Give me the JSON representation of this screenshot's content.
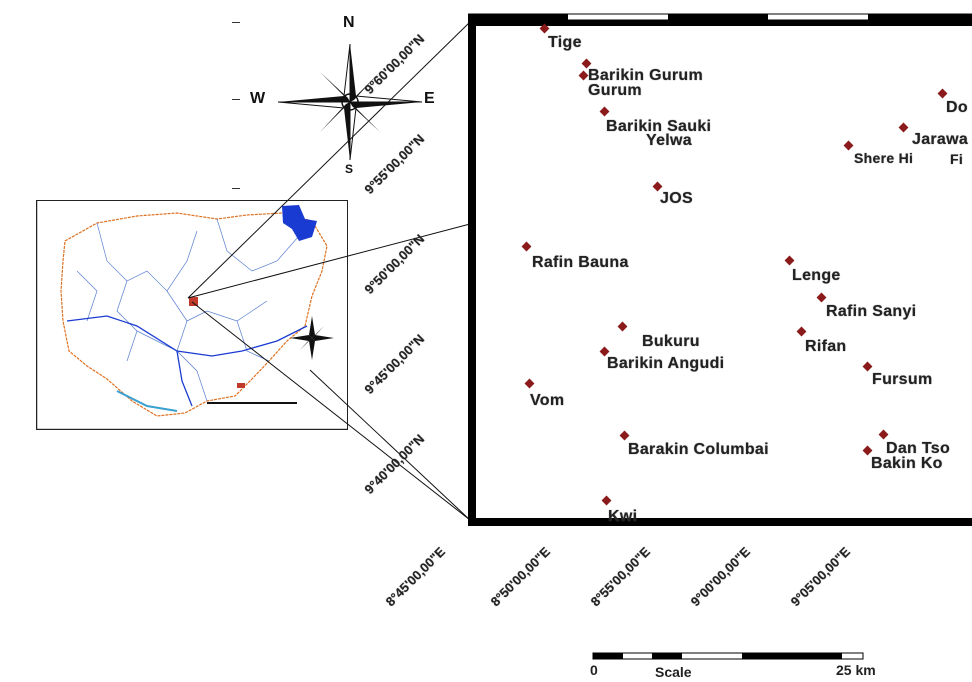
{
  "compass_main": {
    "north": "N",
    "south": "S",
    "east": "E",
    "west": "W"
  },
  "places": [
    {
      "name": "Tige"
    },
    {
      "name": "Barikin Gurum"
    },
    {
      "name": "Gurum"
    },
    {
      "name": "Barikin Sauki"
    },
    {
      "name": "Yelwa"
    },
    {
      "name": "JOS"
    },
    {
      "name": "Rafin Bauna"
    },
    {
      "name": "Bukuru"
    },
    {
      "name": "Barikin Angudi"
    },
    {
      "name": "Vom"
    },
    {
      "name": "Barakin Columbai"
    },
    {
      "name": "Kwi"
    },
    {
      "name": "Lenge"
    },
    {
      "name": "Rafin Sanyi"
    },
    {
      "name": "Rifan"
    },
    {
      "name": "Fursum"
    },
    {
      "name": "Dan Tso"
    },
    {
      "name": "Bakin Ko"
    },
    {
      "name": "Shere Hi"
    },
    {
      "name": "Jarawa"
    },
    {
      "name": "Do"
    },
    {
      "name": "Fi"
    }
  ],
  "lat_labels": [
    "9°40'00,00\"N",
    "9°45'00,00\"N",
    "9°50'00,00\"N",
    "9°55'00,00\"N",
    "9°60'00,00\"N"
  ],
  "lon_labels": [
    "8°45'00,00\"E",
    "8°50'00,00\"E",
    "8°55'00,00\"E",
    "9°00'00,00\"E",
    "9°05'00,00\"E"
  ],
  "scale": {
    "start": "0",
    "label": "Scale",
    "end": "25 km"
  },
  "colors": {
    "marker": "#8b1a1a",
    "inset_water": "#1a3bd1",
    "inset_border": "#e07020",
    "study_area": "#c0392b"
  }
}
